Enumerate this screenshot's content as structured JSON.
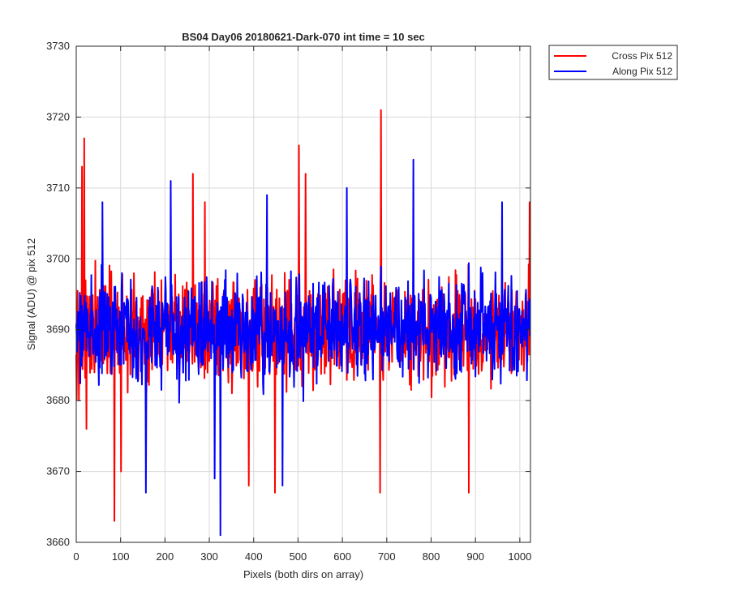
{
  "chart_data": {
    "type": "line",
    "title": "BS04 Day06 20180621-Dark-070 int time = 10 sec",
    "xlabel": "Pixels (both dirs on array)",
    "ylabel": "Signal (ADU) @ pix 512",
    "xlim": [
      0,
      1024
    ],
    "ylim": [
      3660,
      3730
    ],
    "xticks": [
      0,
      100,
      200,
      300,
      400,
      500,
      600,
      700,
      800,
      900,
      1000
    ],
    "yticks": [
      3660,
      3670,
      3680,
      3690,
      3700,
      3710,
      3720,
      3730
    ],
    "grid": true,
    "legend_position": "outside-top-right",
    "series": [
      {
        "name": "Cross Pix 512",
        "color": "#ff0000",
        "noise": {
          "points": 1024,
          "mean": 3690,
          "amplitude": 7,
          "seed": 13
        },
        "highlights": [
          {
            "x": 6,
            "y": 3680
          },
          {
            "x": 13,
            "y": 3713
          },
          {
            "x": 18,
            "y": 3717
          },
          {
            "x": 23,
            "y": 3676
          },
          {
            "x": 86,
            "y": 3663
          },
          {
            "x": 101,
            "y": 3670
          },
          {
            "x": 263,
            "y": 3712
          },
          {
            "x": 290,
            "y": 3708
          },
          {
            "x": 389,
            "y": 3668
          },
          {
            "x": 448,
            "y": 3667
          },
          {
            "x": 502,
            "y": 3716
          },
          {
            "x": 517,
            "y": 3712
          },
          {
            "x": 687,
            "y": 3721
          },
          {
            "x": 685,
            "y": 3667
          },
          {
            "x": 885,
            "y": 3667
          },
          {
            "x": 1022,
            "y": 3708
          }
        ]
      },
      {
        "name": "Along Pix 512",
        "color": "#0000ff",
        "noise": {
          "points": 1024,
          "mean": 3690,
          "amplitude": 7,
          "seed": 97
        },
        "highlights": [
          {
            "x": 59,
            "y": 3708
          },
          {
            "x": 157,
            "y": 3667
          },
          {
            "x": 213,
            "y": 3711
          },
          {
            "x": 312,
            "y": 3669
          },
          {
            "x": 325,
            "y": 3661
          },
          {
            "x": 430,
            "y": 3709
          },
          {
            "x": 465,
            "y": 3668
          },
          {
            "x": 610,
            "y": 3710
          },
          {
            "x": 760,
            "y": 3714
          },
          {
            "x": 960,
            "y": 3708
          }
        ]
      }
    ]
  }
}
